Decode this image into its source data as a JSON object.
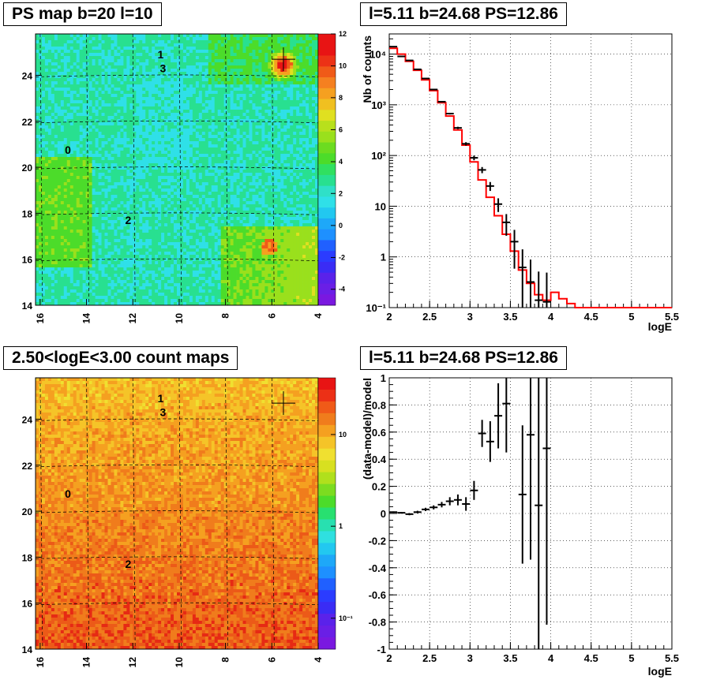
{
  "titles": {
    "ps_map": "PS map b=20 l=10",
    "spectrum": "l=5.11 b=24.68 PS=12.86",
    "count_map": "2.50<logE<3.00 count maps",
    "residual": "l=5.11 b=24.68 PS=12.86"
  },
  "colors": {
    "model_line": "#ff0000",
    "data_marker": "#000000"
  },
  "chart_data": [
    {
      "id": "ps_map",
      "type": "heatmap",
      "title": "PS map b=20 l=10",
      "x_ticks": [
        "16",
        "14",
        "12",
        "10",
        "8",
        "6",
        "4"
      ],
      "y_ticks": [
        "14",
        "16",
        "18",
        "20",
        "22",
        "24"
      ],
      "xlim": [
        16.2,
        4
      ],
      "ylim": [
        14,
        25.8
      ],
      "colorbar_ticks": [
        "12",
        "10",
        "8",
        "6",
        "4",
        "2",
        "0",
        "-2",
        "-4"
      ],
      "colorbar_range": [
        -5,
        12
      ],
      "source_labels": [
        {
          "text": "1",
          "l": 10.8,
          "b": 24.9
        },
        {
          "text": "3",
          "l": 10.7,
          "b": 24.3
        },
        {
          "text": "0",
          "l": 14.8,
          "b": 20.75
        },
        {
          "text": "2",
          "l": 12.2,
          "b": 17.7
        }
      ],
      "marker": {
        "l": 5.5,
        "b": 24.7
      }
    },
    {
      "id": "spectrum",
      "type": "line",
      "title": "l=5.11 b=24.68 PS=12.86",
      "xlabel": "logE",
      "ylabel": "Nb of counts",
      "yscale": "log",
      "xlim": [
        2,
        5.5
      ],
      "ylim": [
        0.1,
        25000
      ],
      "x_ticks": [
        "2",
        "2.5",
        "3",
        "3.5",
        "4",
        "4.5",
        "5",
        "5.5"
      ],
      "y_ticks": [
        "10⁻¹",
        "1",
        "10",
        "10²",
        "10³",
        "10⁴"
      ],
      "grid": true,
      "model_bins": {
        "edges": [
          2.0,
          2.1,
          2.2,
          2.3,
          2.4,
          2.5,
          2.6,
          2.7,
          2.8,
          2.9,
          3.0,
          3.1,
          3.2,
          3.3,
          3.4,
          3.5,
          3.6,
          3.7,
          3.8,
          3.9,
          4.0,
          4.1,
          4.2,
          4.3,
          5.5
        ],
        "values": [
          13000,
          10000,
          7200,
          4800,
          3100,
          1900,
          1100,
          600,
          320,
          160,
          75,
          33,
          15,
          6.5,
          2.8,
          1.3,
          0.55,
          0.3,
          0.18,
          0.14,
          0.2,
          0.15,
          0.12,
          0.1
        ]
      },
      "data_points": [
        {
          "x": 2.05,
          "y": 14000
        },
        {
          "x": 2.15,
          "y": 9000
        },
        {
          "x": 2.25,
          "y": 7500
        },
        {
          "x": 2.35,
          "y": 5000
        },
        {
          "x": 2.45,
          "y": 3300
        },
        {
          "x": 2.55,
          "y": 2000
        },
        {
          "x": 2.65,
          "y": 1150
        },
        {
          "x": 2.75,
          "y": 670
        },
        {
          "x": 2.85,
          "y": 350
        },
        {
          "x": 2.95,
          "y": 170
        },
        {
          "x": 3.05,
          "y": 90
        },
        {
          "x": 3.15,
          "y": 52
        },
        {
          "x": 3.25,
          "y": 25
        },
        {
          "x": 3.35,
          "y": 11
        },
        {
          "x": 3.45,
          "y": 4.8
        },
        {
          "x": 3.55,
          "y": 2.0
        },
        {
          "x": 3.65,
          "y": 0.62
        },
        {
          "x": 3.75,
          "y": 0.32
        },
        {
          "x": 3.85,
          "y": 0.14
        },
        {
          "x": 3.95,
          "y": 0.13
        }
      ]
    },
    {
      "id": "count_map",
      "type": "heatmap",
      "title": "2.50<logE<3.00 count maps",
      "x_ticks": [
        "16",
        "14",
        "12",
        "10",
        "8",
        "6",
        "4"
      ],
      "y_ticks": [
        "14",
        "16",
        "18",
        "20",
        "22",
        "24"
      ],
      "xlim": [
        16.2,
        4
      ],
      "ylim": [
        14,
        25.8
      ],
      "colorbar_ticks": [
        "10",
        "1",
        "10⁻¹"
      ],
      "colorbar_scale": "log",
      "source_labels": [
        {
          "text": "1",
          "l": 10.8,
          "b": 24.9
        },
        {
          "text": "3",
          "l": 10.7,
          "b": 24.3
        },
        {
          "text": "0",
          "l": 14.8,
          "b": 20.75
        },
        {
          "text": "2",
          "l": 12.2,
          "b": 17.7
        }
      ],
      "marker": {
        "l": 5.5,
        "b": 24.7
      }
    },
    {
      "id": "residual",
      "type": "scatter",
      "title": "l=5.11 b=24.68 PS=12.86",
      "xlabel": "logE",
      "ylabel": "(data-model)/model",
      "xlim": [
        2,
        5.5
      ],
      "ylim": [
        -1,
        1
      ],
      "x_ticks": [
        "2",
        "2.5",
        "3",
        "3.5",
        "4",
        "4.5",
        "5",
        "5.5"
      ],
      "y_ticks": [
        "-1",
        "-0.8",
        "-0.6",
        "-0.4",
        "-0.2",
        "0",
        "0.2",
        "0.4",
        "0.6",
        "0.8",
        "1"
      ],
      "grid": true,
      "points": [
        {
          "x": 2.05,
          "y": 0.01,
          "err": 0.005
        },
        {
          "x": 2.15,
          "y": 0.005,
          "err": 0.006
        },
        {
          "x": 2.25,
          "y": -0.005,
          "err": 0.008
        },
        {
          "x": 2.35,
          "y": 0.01,
          "err": 0.01
        },
        {
          "x": 2.45,
          "y": 0.03,
          "err": 0.012
        },
        {
          "x": 2.55,
          "y": 0.045,
          "err": 0.015
        },
        {
          "x": 2.65,
          "y": 0.065,
          "err": 0.02
        },
        {
          "x": 2.75,
          "y": 0.09,
          "err": 0.03
        },
        {
          "x": 2.85,
          "y": 0.1,
          "err": 0.04
        },
        {
          "x": 2.95,
          "y": 0.07,
          "err": 0.05
        },
        {
          "x": 3.05,
          "y": 0.17,
          "err": 0.07
        },
        {
          "x": 3.15,
          "y": 0.59,
          "err": 0.1
        },
        {
          "x": 3.25,
          "y": 0.53,
          "err": 0.15
        },
        {
          "x": 3.35,
          "y": 0.72,
          "err": 0.24
        },
        {
          "x": 3.45,
          "y": 0.81,
          "err": 0.36
        },
        {
          "x": 3.65,
          "y": 0.14,
          "err": 0.51
        },
        {
          "x": 3.75,
          "y": 0.58,
          "err": 0.92
        },
        {
          "x": 3.85,
          "y": 0.06,
          "err": 1.2
        },
        {
          "x": 3.95,
          "y": 0.48,
          "err": 1.3
        }
      ]
    }
  ]
}
